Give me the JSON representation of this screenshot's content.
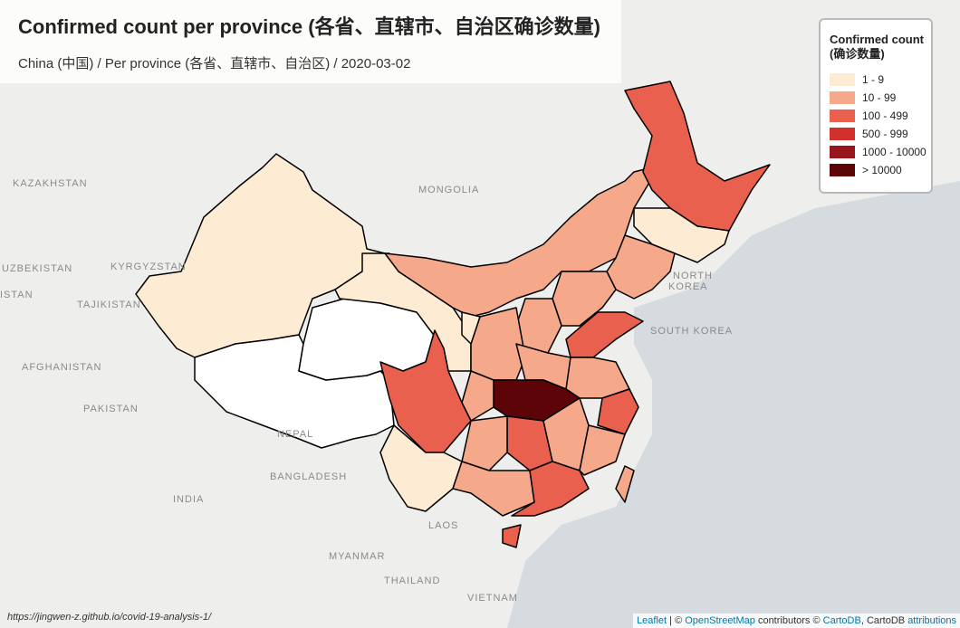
{
  "header": {
    "title": "Confirmed count per province (各省、直辖市、自治区确诊数量)",
    "subtitle": "China (中国) / Per province (各省、直辖市、自治区) / 2020-03-02"
  },
  "legend": {
    "title": "Confirmed count",
    "subtitle": "(确诊数量)",
    "items": [
      {
        "label": "1 - 9",
        "color": "#fdebd3"
      },
      {
        "label": "10 - 99",
        "color": "#f5a88a"
      },
      {
        "label": "100 - 499",
        "color": "#e9604f"
      },
      {
        "label": "500 - 999",
        "color": "#d2302f"
      },
      {
        "label": "1000 - 10000",
        "color": "#97161c"
      },
      {
        "label": "> 10000",
        "color": "#5c0408"
      }
    ]
  },
  "map_labels": [
    "KAZAKHSTAN",
    "MONGOLIA",
    "UZBEKISTAN",
    "KYRGYZSTAN",
    "ISTAN",
    "TAJIKISTAN",
    "AFGHANISTAN",
    "PAKISTAN",
    "NEPAL",
    "BANGLADESH",
    "INDIA",
    "MYANMAR",
    "LAOS",
    "THAILAND",
    "VIETNAM",
    "NORTH",
    "KOREA",
    "SOUTH KOREA"
  ],
  "footer": {
    "source_url": "https://jingwen-z.github.io/covid-19-analysis-1/",
    "attribution": [
      "Leaflet",
      " | © ",
      "OpenStreetMap",
      " contributors © ",
      "CartoDB",
      ", CartoDB ",
      "attributions"
    ]
  }
}
